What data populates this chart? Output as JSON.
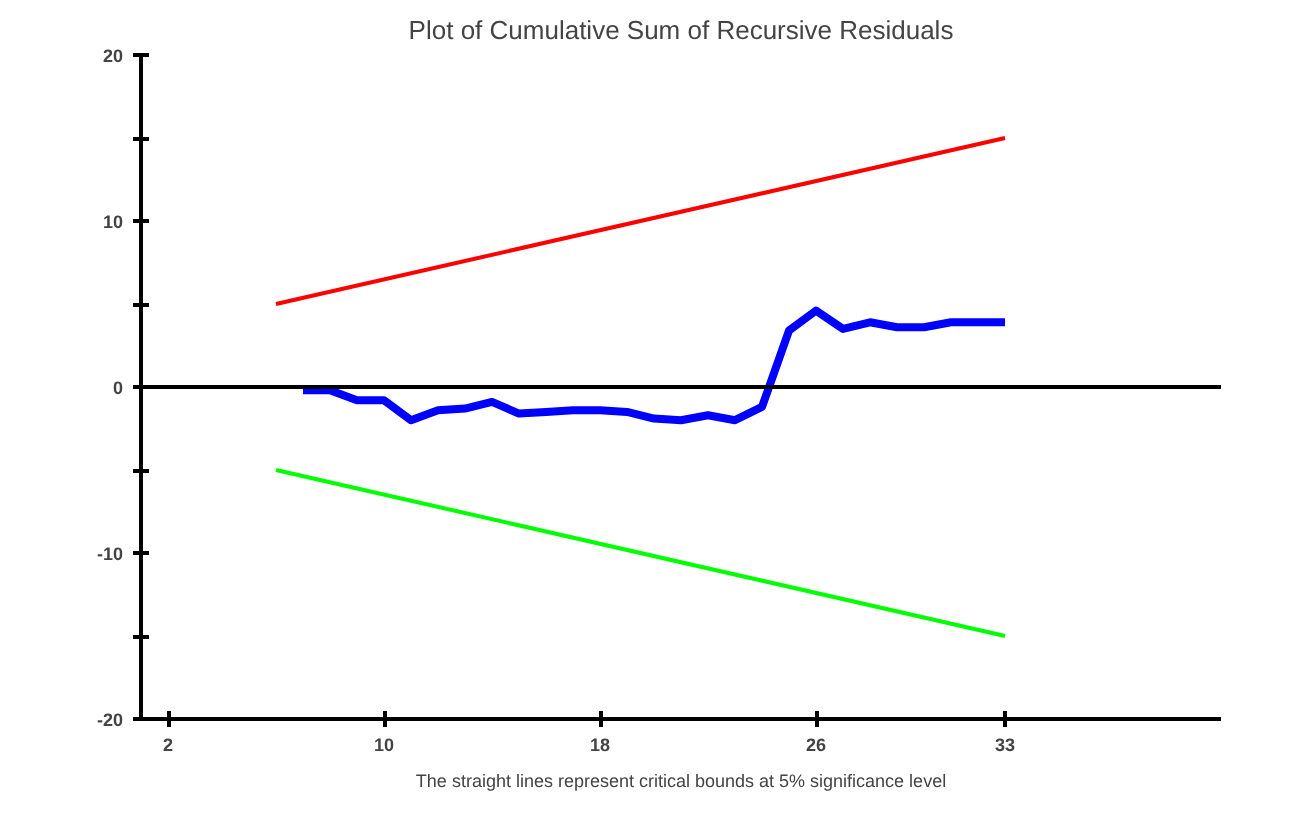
{
  "chart_data": {
    "type": "line",
    "title": "Plot of Cumulative Sum of Recursive Residuals",
    "annotations": [
      "The straight lines represent critical bounds at 5% significance level"
    ],
    "xlim": [
      1,
      41
    ],
    "xticks": [
      2,
      10,
      18,
      26,
      33
    ],
    "ylim": [
      -20,
      20
    ],
    "yticks": [
      -20,
      {
        "value": -15,
        "label": null
      },
      -10,
      {
        "value": -5,
        "label": null
      },
      0,
      {
        "value": 5,
        "label": null
      },
      10,
      {
        "value": 15,
        "label": null
      },
      20
    ],
    "grid": false,
    "marker": "none",
    "line_style": "solid",
    "ref_lines": [
      {
        "axis": "y",
        "value": 0,
        "color": "#000000"
      }
    ],
    "series": [
      {
        "color": "#0000ff",
        "x": [
          7,
          8,
          9,
          10,
          11,
          12,
          13,
          14,
          15,
          16,
          17,
          18,
          19,
          20,
          21,
          22,
          23,
          24,
          25,
          26,
          27,
          28,
          29,
          30,
          31,
          32,
          33
        ],
        "values": [
          -0.2,
          -0.2,
          -0.8,
          -0.8,
          -2.0,
          -1.4,
          -1.3,
          -0.9,
          -1.6,
          -1.5,
          -1.4,
          -1.4,
          -1.5,
          -1.9,
          -2.0,
          -1.7,
          -2.0,
          -1.2,
          3.4,
          4.6,
          3.5,
          3.9,
          3.6,
          3.6,
          3.9,
          3.9,
          3.9
        ]
      },
      {
        "color": "#ff0000",
        "x": [
          6,
          33
        ],
        "values": [
          5,
          15
        ]
      },
      {
        "color": "#00ff00",
        "x": [
          6,
          33
        ],
        "values": [
          -5,
          -15
        ]
      }
    ]
  }
}
